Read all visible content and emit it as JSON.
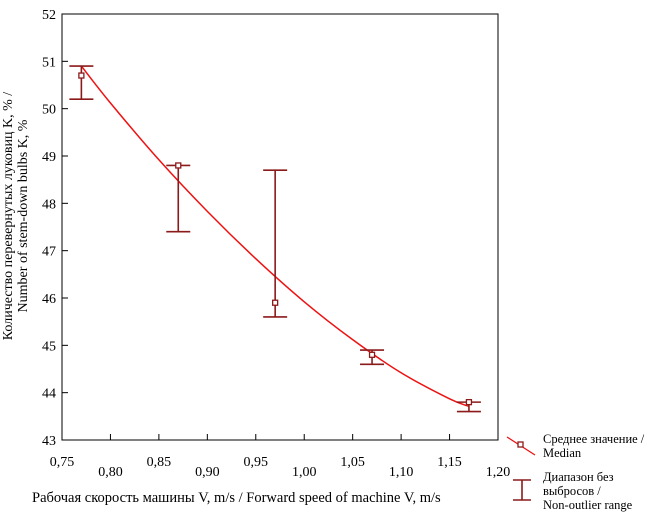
{
  "chart_data": {
    "type": "scatter",
    "xlabel": "Рабочая скорость машины V, m/s / Forward speed of machine V, m/s",
    "ylabel_lines": [
      "Количество перевернутых луковиц K, % /",
      "Number of stem-down bulbs K, %"
    ],
    "xlim": [
      0.75,
      1.2
    ],
    "ylim": [
      43,
      52
    ],
    "x_ticks_upper": [
      "0,75",
      "0,85",
      "0,95",
      "1,05",
      "1,15"
    ],
    "x_ticks_upper_values": [
      0.75,
      0.85,
      0.95,
      1.05,
      1.15
    ],
    "x_ticks_lower": [
      "0,80",
      "0,90",
      "1,00",
      "1,10",
      "1,20"
    ],
    "x_ticks_lower_values": [
      0.8,
      0.9,
      1.0,
      1.1,
      1.2
    ],
    "y_ticks": [
      "43",
      "44",
      "45",
      "46",
      "47",
      "48",
      "49",
      "50",
      "51",
      "52"
    ],
    "y_tick_values": [
      43,
      44,
      45,
      46,
      47,
      48,
      49,
      50,
      51,
      52
    ],
    "grid": false,
    "medians": [
      {
        "x": 0.77,
        "y": 50.7
      },
      {
        "x": 0.87,
        "y": 48.8
      },
      {
        "x": 0.97,
        "y": 45.9
      },
      {
        "x": 1.07,
        "y": 44.8
      },
      {
        "x": 1.17,
        "y": 43.8
      }
    ],
    "ranges": [
      {
        "x": 0.77,
        "low": 50.2,
        "high": 50.9
      },
      {
        "x": 0.87,
        "low": 47.4,
        "high": 48.8
      },
      {
        "x": 0.97,
        "low": 45.6,
        "high": 48.7
      },
      {
        "x": 1.07,
        "low": 44.6,
        "high": 44.9
      },
      {
        "x": 1.17,
        "low": 43.6,
        "high": 43.8
      }
    ],
    "fit_curve": {
      "x": [
        0.77,
        0.8,
        0.85,
        0.9,
        0.95,
        1.0,
        1.05,
        1.1,
        1.15,
        1.17
      ],
      "y": [
        50.9,
        50.12,
        48.92,
        47.83,
        46.83,
        45.92,
        45.12,
        44.42,
        43.87,
        43.71
      ]
    },
    "legend_position": "bottom-right",
    "colors": {
      "series": "#ee1111",
      "range": "#8b1a1a",
      "axis": "#000000"
    }
  },
  "legend": {
    "median_label_lines": [
      "Среднее значение /",
      "Median"
    ],
    "range_label_lines": [
      "Диапазон без",
      "выбросов /",
      "Non-outlier range"
    ]
  }
}
